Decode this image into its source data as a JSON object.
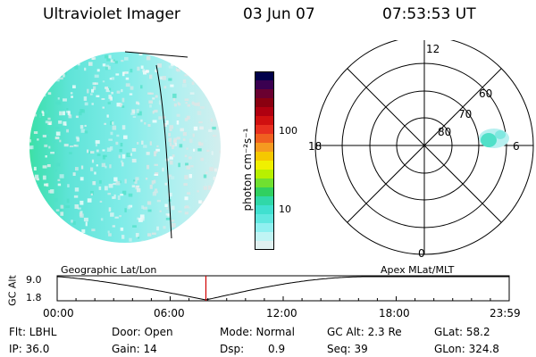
{
  "header": {
    "instrument": "Ultraviolet Imager",
    "date": "03 Jun 07",
    "time": "07:53:53 UT"
  },
  "colorbar": {
    "unit_label": "photon cm⁻²s⁻¹",
    "ticks": [
      "100",
      "10"
    ],
    "colors": [
      "#00004a",
      "#3a0050",
      "#6a0030",
      "#8a0010",
      "#b00010",
      "#d01010",
      "#e83020",
      "#f06020",
      "#f59a20",
      "#f5c800",
      "#f0f000",
      "#b8f000",
      "#70e030",
      "#30d060",
      "#30d8a8",
      "#40e0d0",
      "#60e8e0",
      "#90f0f0",
      "#c0f4f4",
      "#e0f0f0"
    ]
  },
  "polar": {
    "labels_mlt": {
      "top": "12",
      "left": "18",
      "right": "6",
      "bottom": "0"
    },
    "labels_lat": [
      "60",
      "70",
      "80"
    ]
  },
  "timeline": {
    "left_label": "Geographic Lat/Lon",
    "right_label": "Apex  MLat/MLT",
    "axis_title": "GC Alt",
    "y_ticks": [
      "9.0",
      "1.8"
    ],
    "x_ticks": [
      "00:00",
      "06:00",
      "12:00",
      "18:00",
      "23:59"
    ],
    "current_time_fraction": 0.329
  },
  "status": {
    "flt": "Flt: LBHL",
    "ip": "IP: 36.0",
    "door": "Door: Open",
    "gain": "Gain: 14",
    "mode": "Mode: Normal",
    "dsp_label": "Dsp:",
    "dsp_value": "0.9",
    "gc_alt": "GC Alt: 2.3 Re",
    "seq": "Seq: 39",
    "glat": "GLat:  58.2",
    "glon": "GLon: 324.8"
  }
}
